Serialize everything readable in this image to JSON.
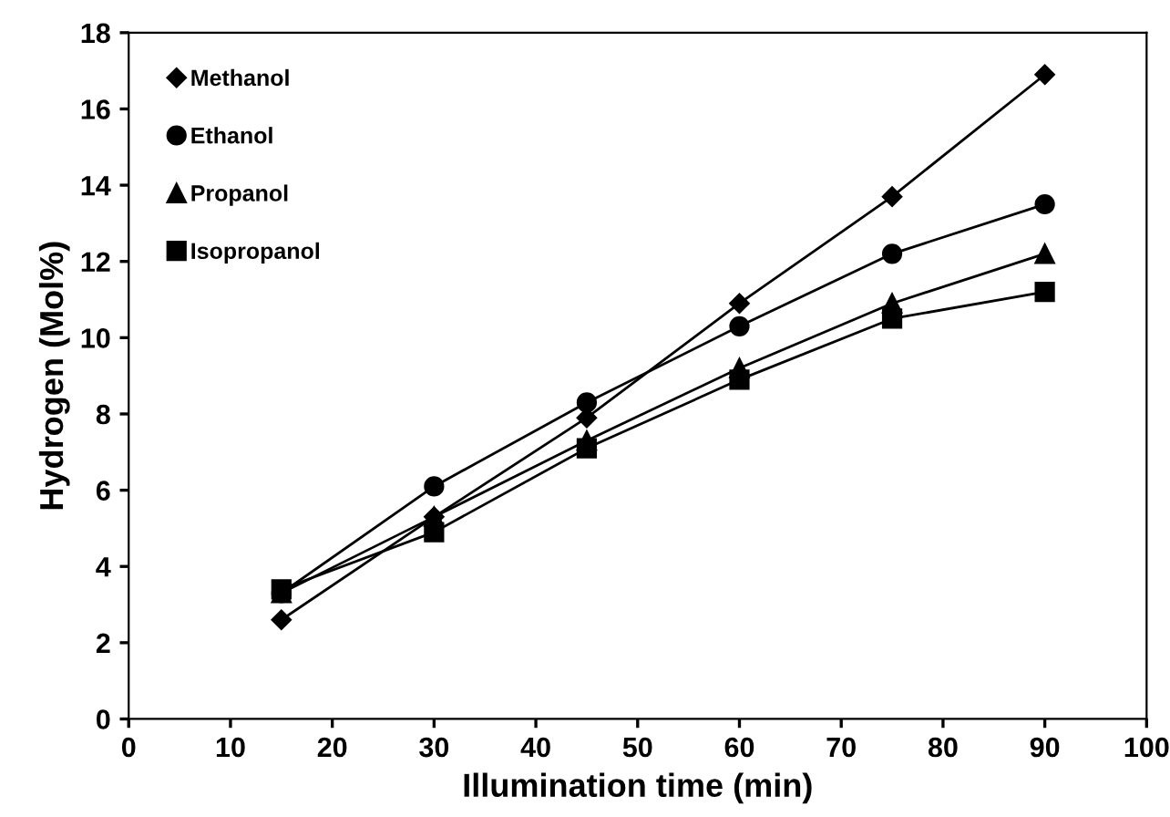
{
  "chart_data": {
    "type": "line",
    "xlabel": "Illumination time (min)",
    "ylabel": "Hydrogen (Mol%)",
    "x": [
      15,
      30,
      45,
      60,
      75,
      90
    ],
    "series": [
      {
        "name": "Methanol",
        "color": "#000000",
        "marker": "diamond",
        "values": [
          2.6,
          5.3,
          7.9,
          10.9,
          13.7,
          16.9
        ]
      },
      {
        "name": "Ethanol",
        "color": "#000000",
        "marker": "circle",
        "values": [
          3.3,
          6.1,
          8.3,
          10.3,
          12.2,
          13.5
        ]
      },
      {
        "name": "Propanol",
        "color": "#000000",
        "marker": "triangle",
        "values": [
          3.3,
          5.3,
          7.3,
          9.2,
          10.9,
          12.2
        ]
      },
      {
        "name": "Isopropanol",
        "color": "#000000",
        "marker": "square",
        "values": [
          3.4,
          4.9,
          7.1,
          8.9,
          10.5,
          11.2
        ]
      }
    ],
    "xlim": [
      0,
      100
    ],
    "xticks": [
      0,
      10,
      20,
      30,
      40,
      50,
      60,
      70,
      80,
      90,
      100
    ],
    "ylim": [
      0,
      18
    ],
    "yticks": [
      0,
      2,
      4,
      6,
      8,
      10,
      12,
      14,
      16,
      18
    ],
    "grid": false,
    "legend": "top left",
    "line_style": "solid"
  }
}
